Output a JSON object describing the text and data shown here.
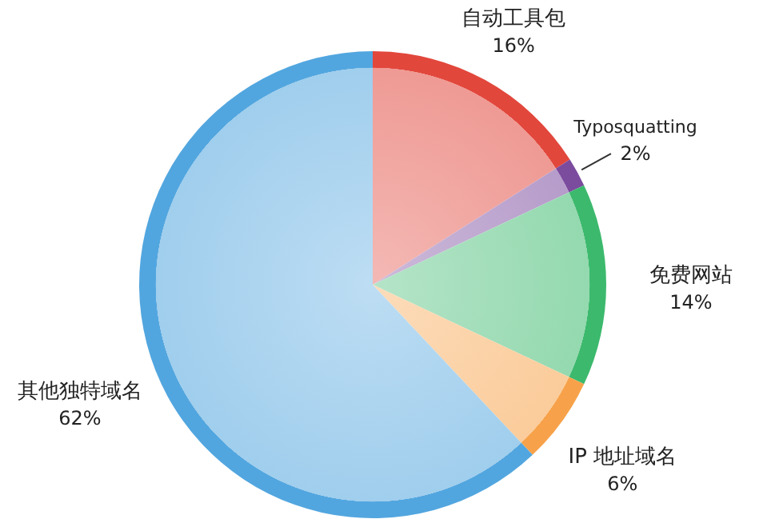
{
  "chart_data": {
    "type": "pie",
    "categories": [
      "自动工具包",
      "Typosquatting",
      "免费网站",
      "IP 地址域名",
      "其他独特域名"
    ],
    "values": [
      16,
      2,
      14,
      6,
      62
    ],
    "value_labels": [
      "16%",
      "2%",
      "14%",
      "6%",
      "62%"
    ],
    "colors": [
      "#e2473c",
      "#7b4b9e",
      "#3cb96d",
      "#f7a24a",
      "#52a6df"
    ]
  }
}
